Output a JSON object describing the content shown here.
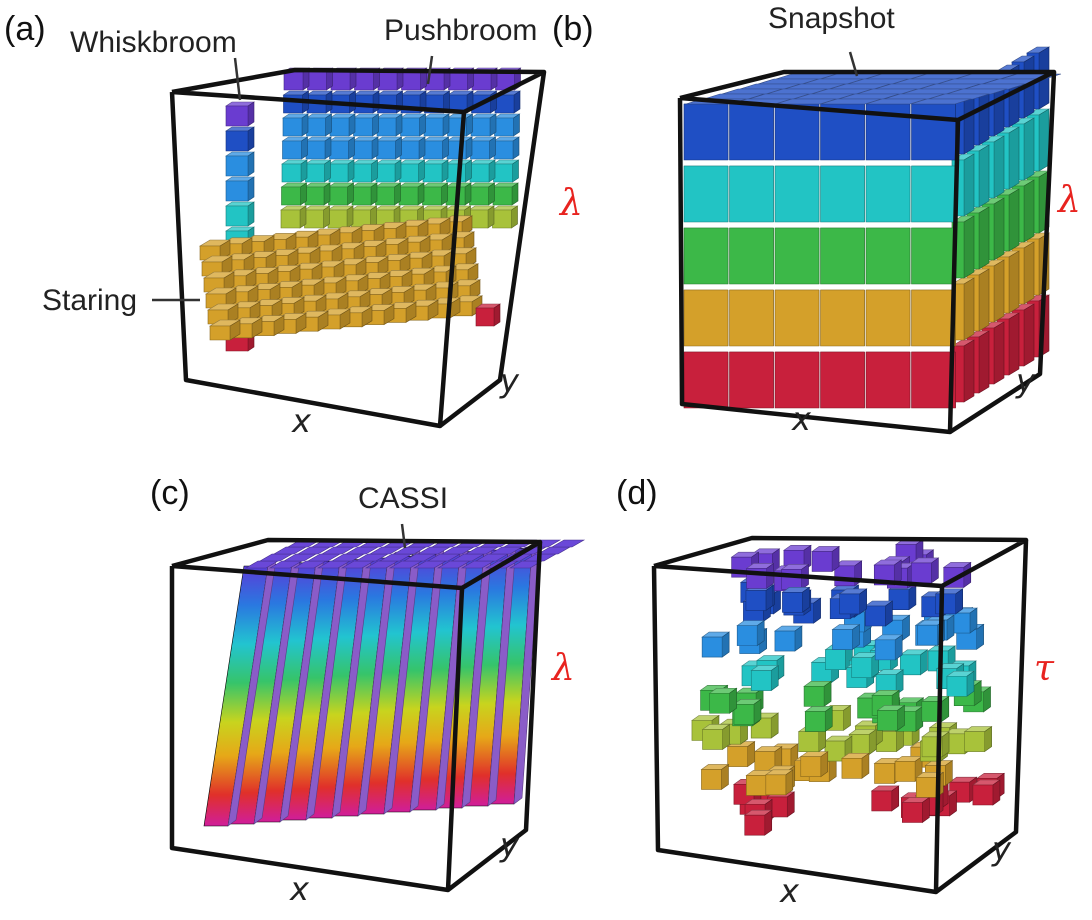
{
  "panels": [
    {
      "id": "a",
      "label": "(a)",
      "callouts": [
        "Whiskbroom",
        "Pushbroom",
        "Staring"
      ],
      "axes": {
        "x": "x",
        "y": "y",
        "spectral": "λ"
      }
    },
    {
      "id": "b",
      "label": "(b)",
      "callouts": [
        "Snapshot"
      ],
      "axes": {
        "x": "x",
        "y": "y",
        "spectral": "λ"
      }
    },
    {
      "id": "c",
      "label": "(c)",
      "callouts": [
        "CASSI"
      ],
      "axes": {
        "x": "x",
        "y": "y",
        "spectral": "λ"
      }
    },
    {
      "id": "d",
      "label": "(d)",
      "callouts": [],
      "axes": {
        "x": "x",
        "y": "y",
        "spectral": "τ"
      }
    }
  ],
  "colors": {
    "spectrum": [
      "#c8203c",
      "#d4a02a",
      "#a8c23a",
      "#3cb848",
      "#22c4c4",
      "#2a8ee0",
      "#1f4fc4",
      "#6a3cd0"
    ],
    "snapshot_layers": [
      "#c8203c",
      "#d4a02a",
      "#3cb848",
      "#22c4c4",
      "#1f4fc4"
    ],
    "cassi_gradient": [
      "#d01e9a",
      "#e0302a",
      "#e6a818",
      "#c8d41e",
      "#36c46a",
      "#22c4d0",
      "#2a78e0",
      "#5a3cd8"
    ],
    "axis_red": "#e8231f"
  }
}
